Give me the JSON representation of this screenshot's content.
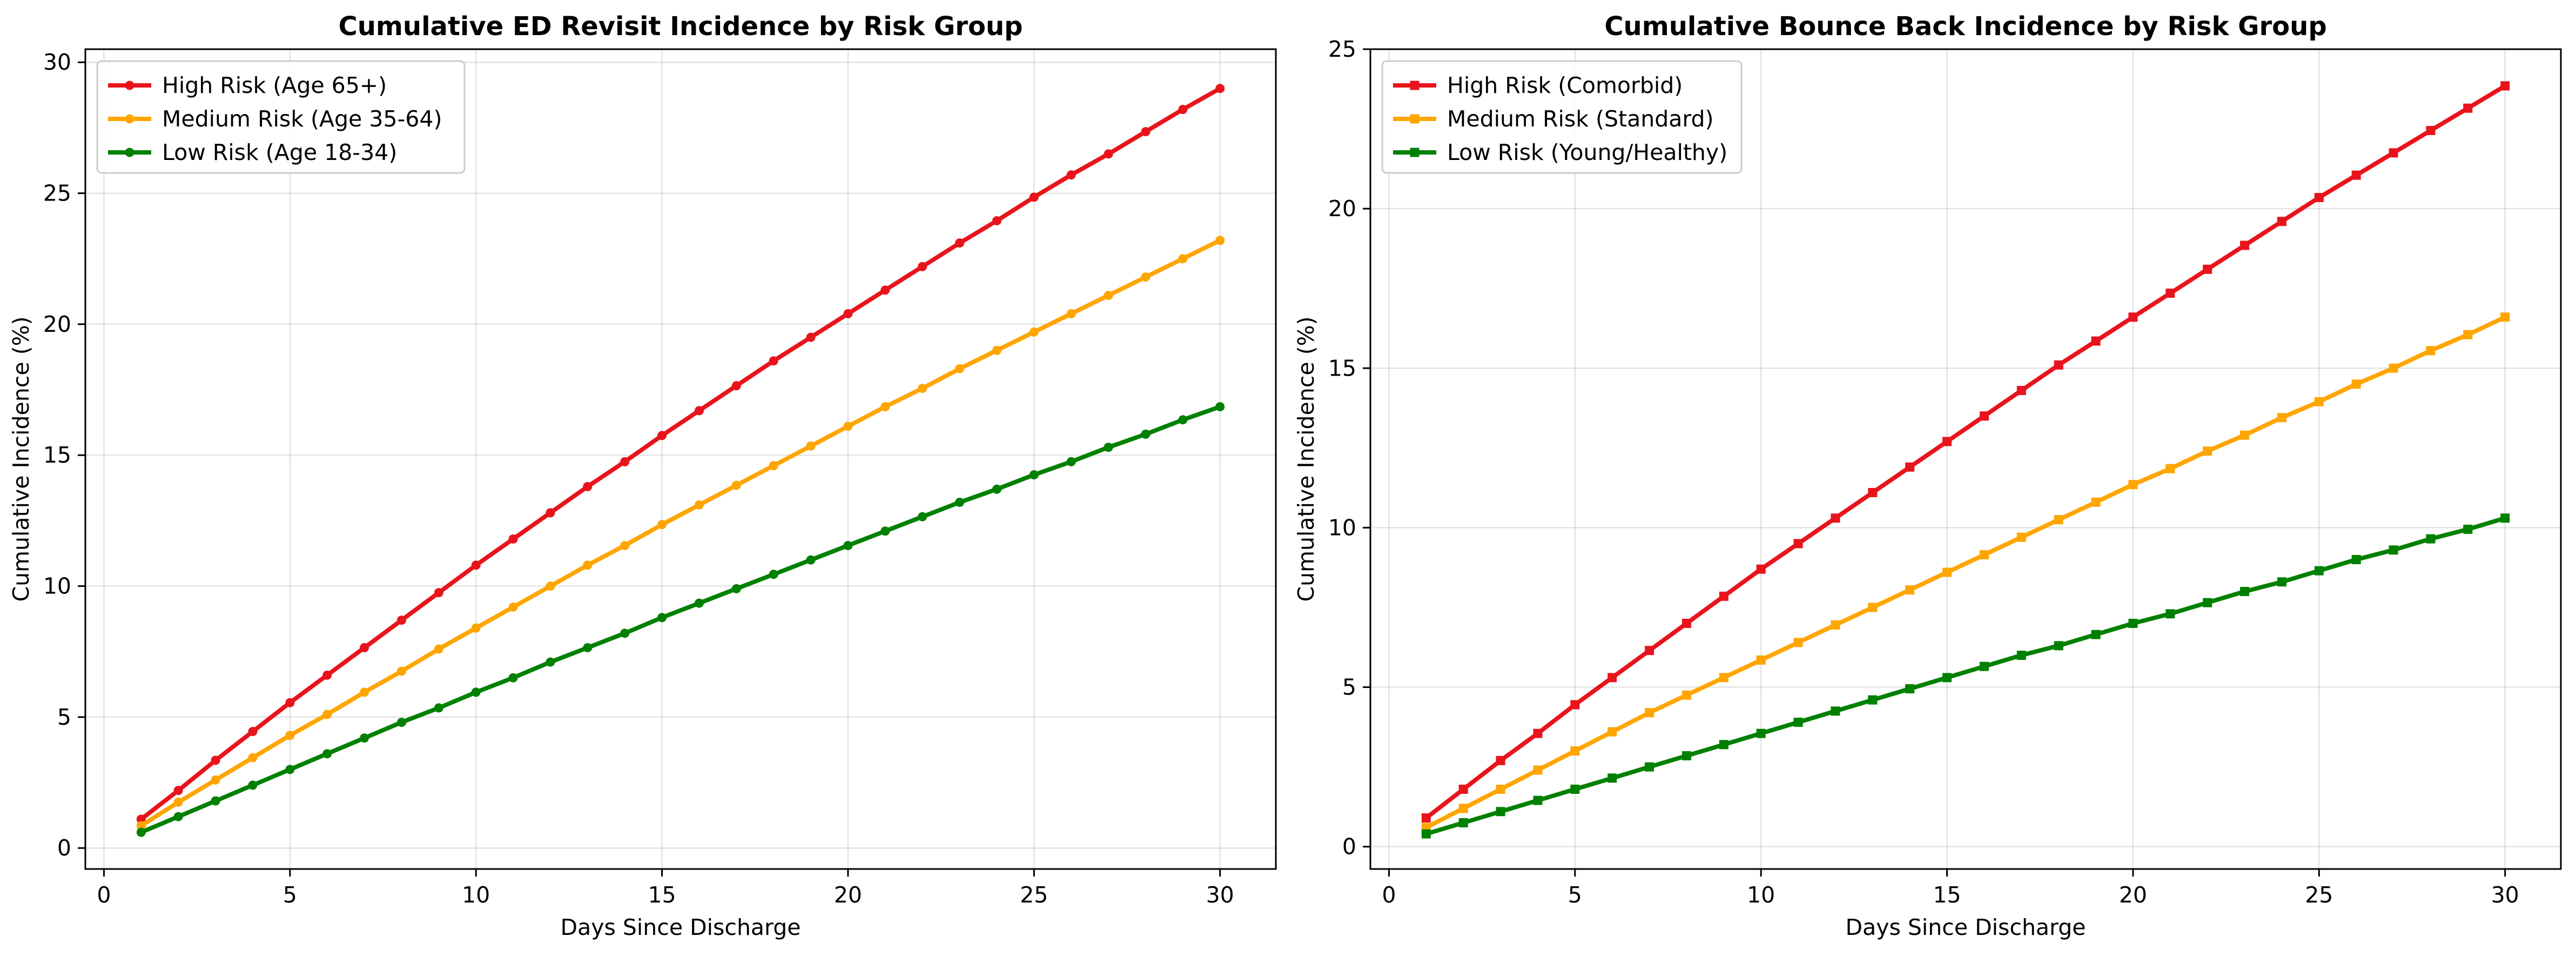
{
  "chart_data": [
    {
      "type": "line",
      "title": "Cumulative ED Revisit Incidence by Risk Group",
      "xlabel": "Days Since Discharge",
      "ylabel": "Cumulative Incidence (%)",
      "xlim": [
        -0.5,
        31.5
      ],
      "ylim": [
        -0.8,
        30.5
      ],
      "xticks": [
        0,
        5,
        10,
        15,
        20,
        25,
        30
      ],
      "yticks": [
        0,
        5,
        10,
        15,
        20,
        25,
        30
      ],
      "grid": true,
      "legend": "top-left",
      "marker": "circle",
      "x": [
        1,
        2,
        3,
        4,
        5,
        6,
        7,
        8,
        9,
        10,
        11,
        12,
        13,
        14,
        15,
        16,
        17,
        18,
        19,
        20,
        21,
        22,
        23,
        24,
        25,
        26,
        27,
        28,
        29,
        30
      ],
      "series": [
        {
          "name": "High Risk (Age 65+)",
          "color": "#e8141c",
          "values": [
            1.1,
            2.2,
            3.35,
            4.45,
            5.55,
            6.6,
            7.65,
            8.7,
            9.75,
            10.8,
            11.8,
            12.8,
            13.8,
            14.75,
            15.75,
            16.7,
            17.65,
            18.6,
            19.5,
            20.4,
            21.3,
            22.2,
            23.1,
            23.95,
            24.85,
            25.7,
            26.5,
            27.35,
            28.2,
            29.0
          ]
        },
        {
          "name": "Medium Risk (Age 35-64)",
          "color": "#ffa500",
          "values": [
            0.85,
            1.75,
            2.6,
            3.45,
            4.3,
            5.1,
            5.95,
            6.75,
            7.6,
            8.4,
            9.2,
            10.0,
            10.8,
            11.55,
            12.35,
            13.1,
            13.85,
            14.6,
            15.35,
            16.1,
            16.85,
            17.55,
            18.3,
            19.0,
            19.7,
            20.4,
            21.1,
            21.8,
            22.5,
            23.2
          ]
        },
        {
          "name": "Low Risk (Age 18-34)",
          "color": "#008000",
          "values": [
            0.6,
            1.2,
            1.8,
            2.4,
            3.0,
            3.6,
            4.2,
            4.8,
            5.35,
            5.95,
            6.5,
            7.1,
            7.65,
            8.2,
            8.8,
            9.35,
            9.9,
            10.45,
            11.0,
            11.55,
            12.1,
            12.65,
            13.2,
            13.7,
            14.25,
            14.75,
            15.3,
            15.8,
            16.35,
            16.85
          ]
        }
      ]
    },
    {
      "type": "line",
      "title": "Cumulative Bounce Back Incidence by Risk Group",
      "xlabel": "Days Since Discharge",
      "ylabel": "Cumulative Incidence (%)",
      "xlim": [
        -0.5,
        31.5
      ],
      "ylim": [
        -0.7,
        25.0
      ],
      "xticks": [
        0,
        5,
        10,
        15,
        20,
        25,
        30
      ],
      "yticks": [
        0,
        5,
        10,
        15,
        20,
        25
      ],
      "grid": true,
      "legend": "top-left",
      "marker": "square",
      "x": [
        1,
        2,
        3,
        4,
        5,
        6,
        7,
        8,
        9,
        10,
        11,
        12,
        13,
        14,
        15,
        16,
        17,
        18,
        19,
        20,
        21,
        22,
        23,
        24,
        25,
        26,
        27,
        28,
        29,
        30
      ],
      "series": [
        {
          "name": "High Risk (Comorbid)",
          "color": "#e8141c",
          "values": [
            0.9,
            1.8,
            2.7,
            3.55,
            4.45,
            5.3,
            6.15,
            7.0,
            7.85,
            8.7,
            9.5,
            10.3,
            11.1,
            11.9,
            12.7,
            13.5,
            14.3,
            15.1,
            15.85,
            16.6,
            17.35,
            18.1,
            18.85,
            19.6,
            20.35,
            21.05,
            21.75,
            22.45,
            23.15,
            23.85
          ]
        },
        {
          "name": "Medium Risk (Standard)",
          "color": "#ffa500",
          "values": [
            0.6,
            1.2,
            1.8,
            2.4,
            3.0,
            3.6,
            4.2,
            4.75,
            5.3,
            5.85,
            6.4,
            6.95,
            7.5,
            8.05,
            8.6,
            9.15,
            9.7,
            10.25,
            10.8,
            11.35,
            11.85,
            12.4,
            12.9,
            13.45,
            13.95,
            14.5,
            15.0,
            15.55,
            16.05,
            16.6
          ]
        },
        {
          "name": "Low Risk (Young/Healthy)",
          "color": "#008000",
          "values": [
            0.4,
            0.75,
            1.1,
            1.45,
            1.8,
            2.15,
            2.5,
            2.85,
            3.2,
            3.55,
            3.9,
            4.25,
            4.6,
            4.95,
            5.3,
            5.65,
            6.0,
            6.3,
            6.65,
            7.0,
            7.3,
            7.65,
            8.0,
            8.3,
            8.65,
            9.0,
            9.3,
            9.65,
            9.95,
            10.3
          ]
        }
      ]
    }
  ]
}
